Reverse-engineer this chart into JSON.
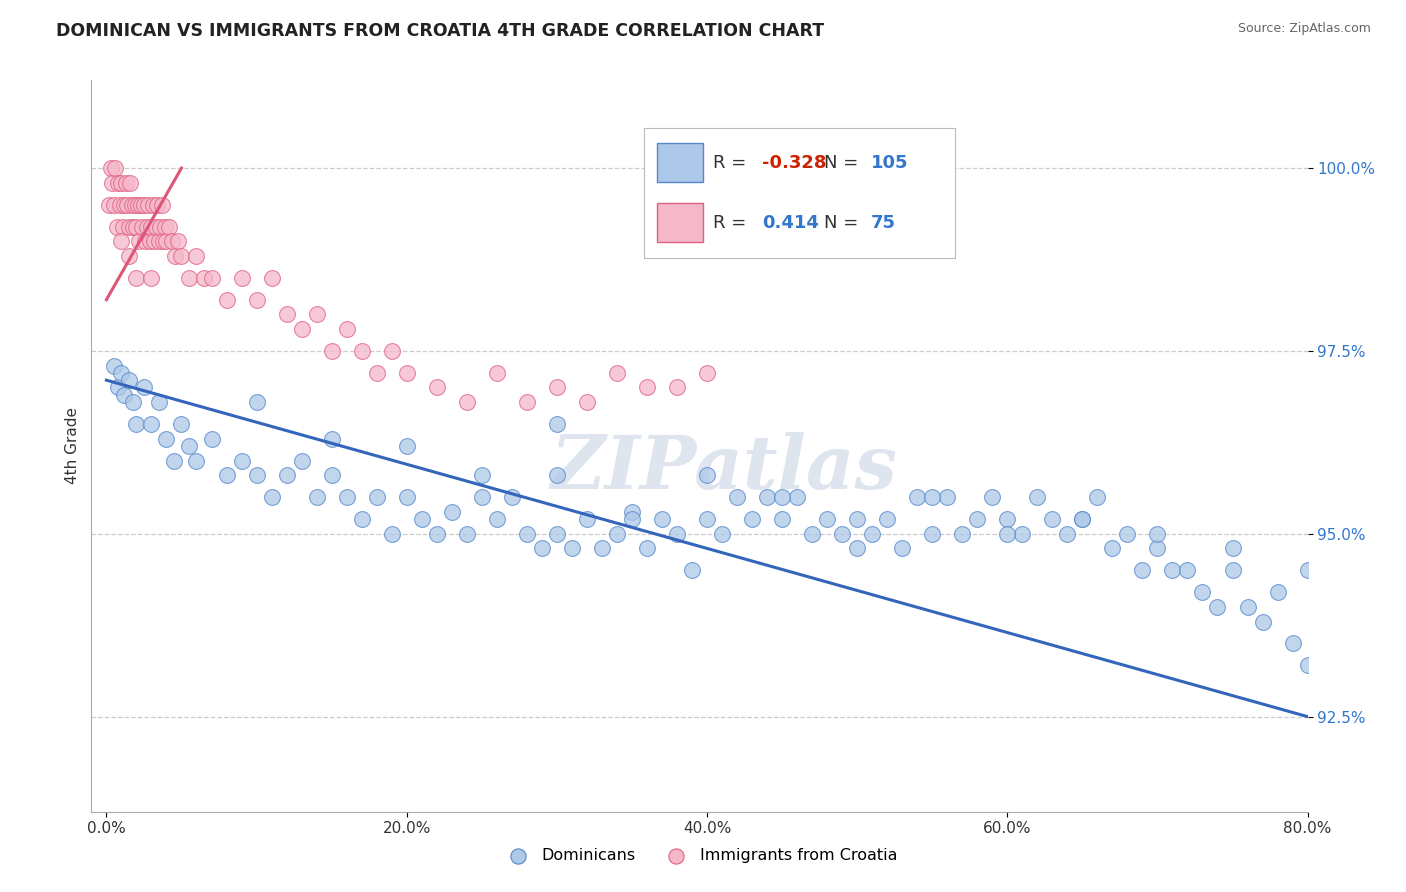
{
  "title": "DOMINICAN VS IMMIGRANTS FROM CROATIA 4TH GRADE CORRELATION CHART",
  "source_text": "Source: ZipAtlas.com",
  "ylabel": "4th Grade",
  "watermark": "ZIPatlas",
  "xlim": [
    -1.0,
    80.0
  ],
  "ylim": [
    91.2,
    101.2
  ],
  "xticks": [
    0.0,
    20.0,
    40.0,
    60.0,
    80.0
  ],
  "xtick_labels": [
    "0.0%",
    "20.0%",
    "40.0%",
    "60.0%",
    "80.0%"
  ],
  "yticks": [
    92.5,
    95.0,
    97.5,
    100.0
  ],
  "ytick_labels": [
    "92.5%",
    "95.0%",
    "97.5%",
    "100.0%"
  ],
  "blue_R": -0.328,
  "blue_N": 105,
  "pink_R": 0.414,
  "pink_N": 75,
  "legend_entries": [
    "Dominicans",
    "Immigrants from Croatia"
  ],
  "blue_color": "#adc8e8",
  "blue_edge_color": "#5588cc",
  "pink_color": "#f5b8cb",
  "pink_edge_color": "#e06080",
  "blue_line_color": "#3366bb",
  "pink_line_color": "#dd5577",
  "blue_scatter_x": [
    0.5,
    0.8,
    1.0,
    1.2,
    1.5,
    1.8,
    2.0,
    2.5,
    3.0,
    3.5,
    4.0,
    4.5,
    5.0,
    5.5,
    6.0,
    7.0,
    8.0,
    9.0,
    10.0,
    11.0,
    12.0,
    13.0,
    14.0,
    15.0,
    16.0,
    17.0,
    18.0,
    19.0,
    20.0,
    21.0,
    22.0,
    23.0,
    24.0,
    25.0,
    26.0,
    27.0,
    28.0,
    29.0,
    30.0,
    31.0,
    32.0,
    33.0,
    34.0,
    35.0,
    36.0,
    37.0,
    38.0,
    39.0,
    40.0,
    41.0,
    42.0,
    43.0,
    44.0,
    45.0,
    46.0,
    47.0,
    48.0,
    49.0,
    50.0,
    51.0,
    52.0,
    53.0,
    54.0,
    55.0,
    56.0,
    57.0,
    58.0,
    59.0,
    60.0,
    61.0,
    62.0,
    63.0,
    64.0,
    65.0,
    66.0,
    67.0,
    68.0,
    69.0,
    70.0,
    71.0,
    72.0,
    73.0,
    74.0,
    75.0,
    76.0,
    77.0,
    78.0,
    79.0,
    80.0,
    10.0,
    15.0,
    20.0,
    25.0,
    30.0,
    35.0,
    40.0,
    45.0,
    50.0,
    55.0,
    60.0,
    65.0,
    70.0,
    75.0,
    80.0,
    30.0
  ],
  "blue_scatter_y": [
    97.3,
    97.0,
    97.2,
    96.9,
    97.1,
    96.8,
    96.5,
    97.0,
    96.5,
    96.8,
    96.3,
    96.0,
    96.5,
    96.2,
    96.0,
    96.3,
    95.8,
    96.0,
    95.8,
    95.5,
    95.8,
    96.0,
    95.5,
    95.8,
    95.5,
    95.2,
    95.5,
    95.0,
    95.5,
    95.2,
    95.0,
    95.3,
    95.0,
    95.5,
    95.2,
    95.5,
    95.0,
    94.8,
    95.0,
    94.8,
    95.2,
    94.8,
    95.0,
    95.3,
    94.8,
    95.2,
    95.0,
    94.5,
    95.2,
    95.0,
    95.5,
    95.2,
    95.5,
    95.2,
    95.5,
    95.0,
    95.2,
    95.0,
    94.8,
    95.0,
    95.2,
    94.8,
    95.5,
    95.0,
    95.5,
    95.0,
    95.2,
    95.5,
    95.2,
    95.0,
    95.5,
    95.2,
    95.0,
    95.2,
    95.5,
    94.8,
    95.0,
    94.5,
    94.8,
    94.5,
    94.5,
    94.2,
    94.0,
    94.5,
    94.0,
    93.8,
    94.2,
    93.5,
    93.2,
    96.8,
    96.3,
    96.2,
    95.8,
    95.8,
    95.2,
    95.8,
    95.5,
    95.2,
    95.5,
    95.0,
    95.2,
    95.0,
    94.8,
    94.5,
    96.5
  ],
  "pink_scatter_x": [
    0.2,
    0.3,
    0.4,
    0.5,
    0.6,
    0.7,
    0.8,
    0.9,
    1.0,
    1.1,
    1.2,
    1.3,
    1.4,
    1.5,
    1.6,
    1.7,
    1.8,
    1.9,
    2.0,
    2.1,
    2.2,
    2.3,
    2.4,
    2.5,
    2.6,
    2.7,
    2.8,
    2.9,
    3.0,
    3.1,
    3.2,
    3.3,
    3.4,
    3.5,
    3.6,
    3.7,
    3.8,
    3.9,
    4.0,
    4.2,
    4.4,
    4.6,
    4.8,
    5.0,
    5.5,
    6.0,
    6.5,
    7.0,
    8.0,
    9.0,
    10.0,
    11.0,
    12.0,
    13.0,
    14.0,
    15.0,
    16.0,
    17.0,
    18.0,
    19.0,
    20.0,
    22.0,
    24.0,
    26.0,
    28.0,
    30.0,
    32.0,
    34.0,
    36.0,
    38.0,
    40.0,
    1.0,
    1.5,
    2.0,
    3.0
  ],
  "pink_scatter_y": [
    99.5,
    100.0,
    99.8,
    99.5,
    100.0,
    99.2,
    99.8,
    99.5,
    99.8,
    99.2,
    99.5,
    99.8,
    99.5,
    99.2,
    99.8,
    99.5,
    99.2,
    99.5,
    99.2,
    99.5,
    99.0,
    99.5,
    99.2,
    99.5,
    99.0,
    99.2,
    99.5,
    99.0,
    99.2,
    99.5,
    99.0,
    99.2,
    99.5,
    99.0,
    99.2,
    99.5,
    99.0,
    99.2,
    99.0,
    99.2,
    99.0,
    98.8,
    99.0,
    98.8,
    98.5,
    98.8,
    98.5,
    98.5,
    98.2,
    98.5,
    98.2,
    98.5,
    98.0,
    97.8,
    98.0,
    97.5,
    97.8,
    97.5,
    97.2,
    97.5,
    97.2,
    97.0,
    96.8,
    97.2,
    96.8,
    97.0,
    96.8,
    97.2,
    97.0,
    97.0,
    97.2,
    99.0,
    98.8,
    98.5,
    98.5
  ],
  "blue_line_x0": 0.0,
  "blue_line_x1": 80.0,
  "blue_line_y0": 97.1,
  "blue_line_y1": 92.5,
  "pink_line_x0": 0.0,
  "pink_line_x1": 5.0,
  "pink_line_y0": 98.2,
  "pink_line_y1": 100.0
}
